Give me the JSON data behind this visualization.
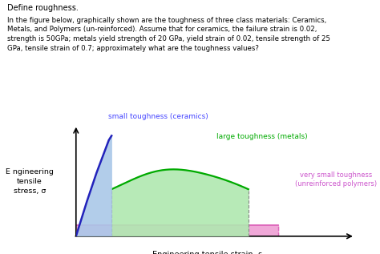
{
  "title_text": "Define roughness.",
  "body_text": "In the figure below, graphically shown are the toughness of three class materials: Ceramics,\nMetals, and Polymers (un-reinforced). Assume that for ceramics, the failure strain is 0.02,\nstrength is 50GPa; metals yield strength of 20 GPa, yield strain of 0.02, tensile strength of 25\nGPa, tensile strain of 0.7; approximately what are the toughness values?",
  "ylabel": "E ngineering\ntensile\nstress, σ",
  "xlabel": "Engineering tensile strain, ε",
  "ceramics_label": "small toughness (ceramics)",
  "metals_label": "large toughness (metals)",
  "polymers_label": "very small toughness\n(unreinforced polymers)",
  "ceramics_color_fill": "#aac8e8",
  "ceramics_color_line": "#2222bb",
  "metals_color_fill": "#b0e8b0",
  "metals_color_line": "#00aa00",
  "polymers_color_fill": "#f0a8d8",
  "polymers_color_line": "#dd66bb",
  "background_color": "#ffffff",
  "text_color": "#000000",
  "ceramics_label_color": "#4444ff",
  "metals_label_color": "#00aa00",
  "polymers_label_color": "#cc55cc"
}
